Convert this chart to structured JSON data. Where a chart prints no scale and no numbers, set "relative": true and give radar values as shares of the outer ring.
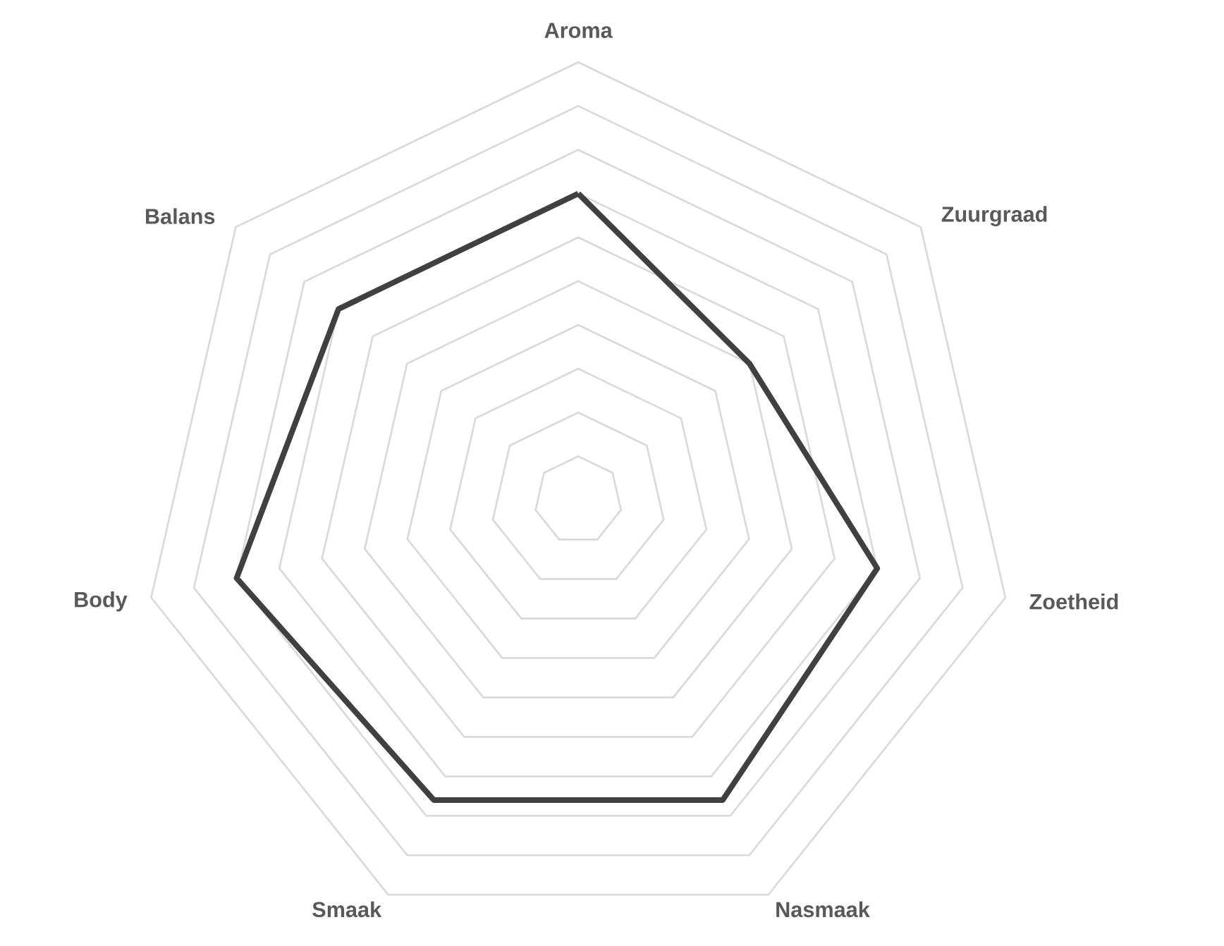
{
  "chart_data": {
    "type": "radar",
    "relative": true,
    "grid": true,
    "categories": [
      "Aroma",
      "Zuurgraad",
      "Zoetheid",
      "Nasmaak",
      "Smaak",
      "Body",
      "Balans"
    ],
    "series": [
      {
        "color": "#404040",
        "values": [
          0.7,
          0.5,
          0.7,
          0.76,
          0.76,
          0.8,
          0.7
        ]
      }
    ]
  }
}
